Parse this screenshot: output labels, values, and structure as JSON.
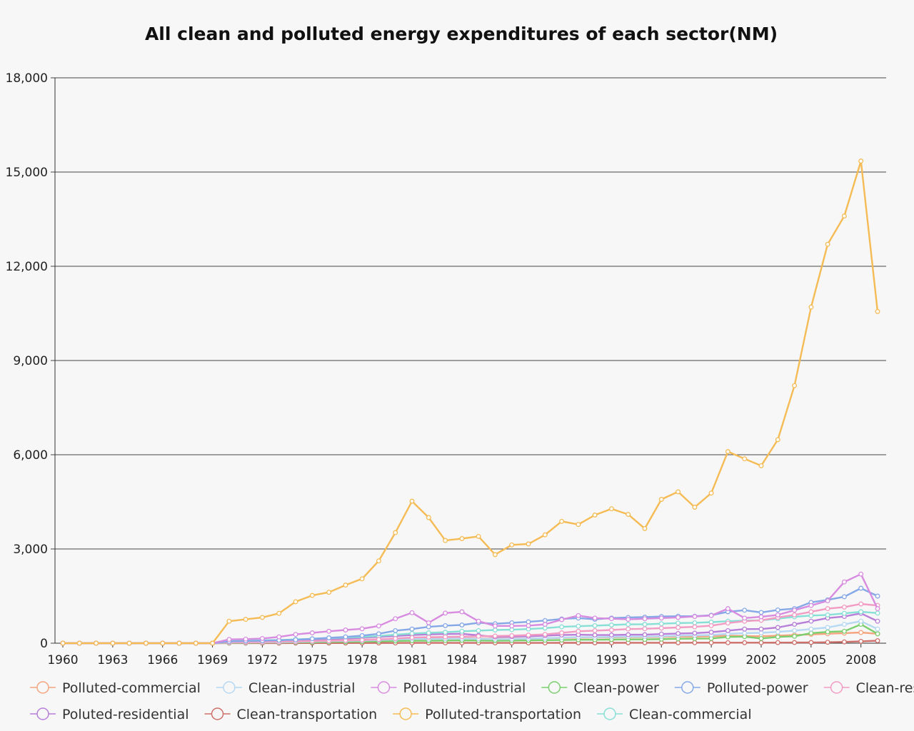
{
  "chart_data": {
    "type": "line",
    "title": "All clean and polluted energy expenditures of each sector(NM)",
    "xlabel": "",
    "ylabel": "",
    "x": [
      1960,
      1961,
      1962,
      1963,
      1964,
      1965,
      1966,
      1967,
      1968,
      1969,
      1970,
      1971,
      1972,
      1973,
      1974,
      1975,
      1976,
      1977,
      1978,
      1979,
      1980,
      1981,
      1982,
      1983,
      1984,
      1985,
      1986,
      1987,
      1988,
      1989,
      1990,
      1991,
      1992,
      1993,
      1994,
      1995,
      1996,
      1997,
      1998,
      1999,
      2000,
      2001,
      2002,
      2003,
      2004,
      2005,
      2006,
      2007,
      2008,
      2009
    ],
    "x_tick_labels": [
      "1960",
      "1963",
      "1966",
      "1969",
      "1972",
      "1975",
      "1978",
      "1981",
      "1984",
      "1987",
      "1990",
      "1993",
      "1996",
      "1999",
      "2002",
      "2005",
      "2008"
    ],
    "ylim": [
      0,
      18000
    ],
    "y_ticks": [
      0,
      3000,
      6000,
      9000,
      12000,
      15000,
      18000
    ],
    "y_tick_labels": [
      "0",
      "3,000",
      "6,000",
      "9,000",
      "12,000",
      "15,000",
      "18,000"
    ],
    "grid": "horizontal",
    "legend_position": "bottom",
    "series": [
      {
        "name": "Polluted-commercial",
        "color": "#f4a57f",
        "values": [
          0,
          0,
          0,
          0,
          0,
          0,
          0,
          0,
          0,
          0,
          40,
          45,
          50,
          55,
          65,
          75,
          85,
          95,
          105,
          120,
          140,
          160,
          150,
          155,
          160,
          150,
          140,
          145,
          150,
          160,
          170,
          175,
          180,
          185,
          190,
          190,
          200,
          210,
          210,
          220,
          240,
          230,
          220,
          240,
          260,
          280,
          300,
          320,
          340,
          300
        ]
      },
      {
        "name": "Clean-industrial",
        "color": "#b6d8f2",
        "values": [
          0,
          0,
          0,
          0,
          0,
          0,
          0,
          0,
          0,
          0,
          20,
          25,
          30,
          35,
          45,
          55,
          65,
          75,
          85,
          100,
          120,
          140,
          130,
          140,
          150,
          140,
          130,
          135,
          145,
          160,
          175,
          190,
          190,
          200,
          210,
          210,
          220,
          240,
          250,
          260,
          300,
          320,
          330,
          360,
          400,
          450,
          500,
          600,
          700,
          450
        ]
      },
      {
        "name": "Polluted-industrial",
        "color": "#d78ce0",
        "values": [
          0,
          0,
          0,
          0,
          0,
          0,
          0,
          0,
          0,
          0,
          120,
          130,
          150,
          200,
          280,
          330,
          380,
          420,
          460,
          550,
          780,
          970,
          650,
          960,
          1000,
          700,
          550,
          550,
          560,
          600,
          750,
          880,
          800,
          780,
          760,
          780,
          800,
          820,
          850,
          880,
          1100,
          800,
          840,
          900,
          1050,
          1200,
          1350,
          1950,
          2200,
          1100
        ]
      },
      {
        "name": "Clean-power",
        "color": "#7ccf6f",
        "values": [
          0,
          0,
          0,
          0,
          0,
          0,
          0,
          0,
          0,
          0,
          10,
          15,
          20,
          25,
          30,
          35,
          40,
          45,
          50,
          60,
          70,
          80,
          80,
          85,
          90,
          85,
          80,
          85,
          90,
          95,
          100,
          110,
          110,
          115,
          120,
          120,
          130,
          140,
          145,
          150,
          200,
          210,
          150,
          200,
          220,
          320,
          360,
          380,
          600,
          300
        ]
      },
      {
        "name": "Polluted-power",
        "color": "#86a8e7",
        "values": [
          0,
          0,
          0,
          0,
          0,
          0,
          0,
          0,
          0,
          0,
          60,
          70,
          80,
          95,
          110,
          140,
          170,
          200,
          240,
          300,
          400,
          450,
          520,
          560,
          580,
          650,
          620,
          650,
          680,
          720,
          770,
          800,
          760,
          800,
          820,
          830,
          850,
          860,
          860,
          890,
          1000,
          1050,
          980,
          1060,
          1100,
          1300,
          1380,
          1480,
          1750,
          1500
        ]
      },
      {
        "name": "Clean-residential",
        "color": "#f29bc3",
        "values": [
          0,
          0,
          0,
          0,
          0,
          0,
          0,
          0,
          0,
          0,
          30,
          35,
          40,
          50,
          60,
          70,
          80,
          90,
          100,
          120,
          150,
          180,
          190,
          200,
          210,
          220,
          230,
          240,
          260,
          280,
          330,
          380,
          400,
          420,
          450,
          460,
          480,
          500,
          520,
          560,
          640,
          700,
          730,
          820,
          900,
          1000,
          1100,
          1150,
          1250,
          1200
        ]
      },
      {
        "name": "Poluted-residential",
        "color": "#b77fd8",
        "values": [
          0,
          0,
          0,
          0,
          0,
          0,
          0,
          0,
          0,
          0,
          50,
          55,
          60,
          75,
          90,
          110,
          130,
          150,
          170,
          200,
          230,
          260,
          280,
          290,
          300,
          250,
          200,
          210,
          220,
          240,
          260,
          270,
          260,
          260,
          270,
          270,
          290,
          310,
          320,
          350,
          400,
          450,
          450,
          500,
          600,
          700,
          800,
          850,
          950,
          700
        ]
      },
      {
        "name": "Clean-transportation",
        "color": "#cd6f6a",
        "values": [
          0,
          0,
          0,
          0,
          0,
          0,
          0,
          0,
          0,
          0,
          2,
          2,
          3,
          3,
          4,
          4,
          5,
          5,
          6,
          6,
          7,
          8,
          8,
          8,
          9,
          9,
          9,
          10,
          10,
          10,
          11,
          11,
          12,
          12,
          13,
          13,
          14,
          14,
          15,
          15,
          16,
          16,
          17,
          18,
          20,
          22,
          30,
          40,
          60,
          80
        ]
      },
      {
        "name": "Polluted-transportation",
        "color": "#f5bb55",
        "values": [
          0,
          0,
          0,
          0,
          0,
          0,
          0,
          0,
          0,
          0,
          700,
          760,
          820,
          950,
          1320,
          1520,
          1620,
          1850,
          2050,
          2620,
          3520,
          4520,
          4000,
          3270,
          3330,
          3400,
          2820,
          3130,
          3160,
          3450,
          3880,
          3780,
          4080,
          4280,
          4100,
          3650,
          4580,
          4820,
          4330,
          4780,
          6100,
          5870,
          5650,
          6480,
          8200,
          10700,
          12700,
          13600,
          15350,
          10560
        ]
      },
      {
        "name": "Clean-commercial",
        "color": "#88dfd6",
        "values": [
          0,
          0,
          0,
          0,
          0,
          0,
          0,
          0,
          0,
          0,
          70,
          80,
          90,
          100,
          120,
          140,
          160,
          180,
          200,
          230,
          270,
          310,
          330,
          350,
          380,
          400,
          420,
          430,
          450,
          480,
          520,
          540,
          560,
          580,
          600,
          600,
          620,
          640,
          650,
          670,
          700,
          720,
          730,
          780,
          840,
          880,
          900,
          950,
          1000,
          960
        ]
      }
    ]
  }
}
